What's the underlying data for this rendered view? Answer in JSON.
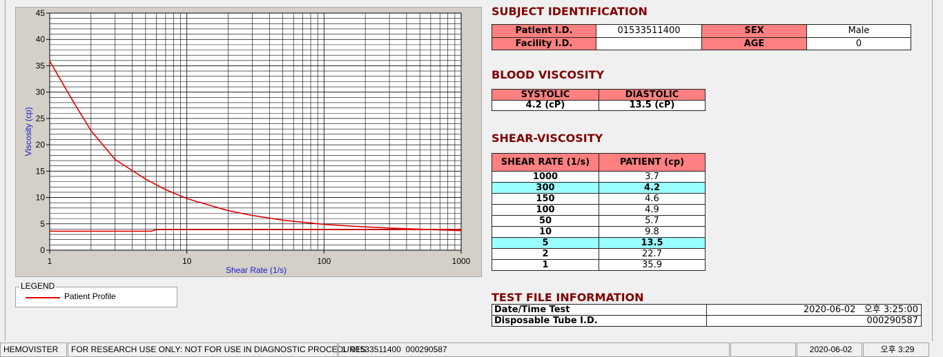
{
  "chart_data": {
    "type": "line",
    "ylabel": "Viscosity (cp)",
    "xlabel": "Shear Rate (1/s)",
    "log_x": true,
    "grid": true,
    "xlim": [
      1,
      1000
    ],
    "xticks": [
      1,
      10,
      100,
      1000
    ],
    "xminorticks": [
      2,
      3,
      4,
      5,
      6,
      7,
      8,
      9,
      20,
      30,
      40,
      50,
      60,
      70,
      80,
      90,
      200,
      300,
      400,
      500,
      600,
      700,
      800,
      900
    ],
    "ylim": [
      0,
      45
    ],
    "yticks": [
      0,
      5,
      10,
      15,
      20,
      25,
      30,
      35,
      40,
      45
    ],
    "yminorticks": [
      1,
      2,
      3,
      4,
      6,
      7,
      8,
      9,
      11,
      12,
      13,
      14,
      16,
      17,
      18,
      19,
      21,
      22,
      23,
      24,
      26,
      27,
      28,
      29,
      31,
      32,
      33,
      34,
      36,
      37,
      38,
      39,
      41,
      42,
      43,
      44
    ],
    "legend_title": "LEGEND",
    "series": [
      {
        "name": "Patient Profile",
        "color": "#e00000",
        "x": [
          1,
          1.5,
          2,
          3,
          5,
          7,
          10,
          20,
          30,
          50,
          100,
          150,
          300,
          1000
        ],
        "values": [
          35.9,
          28,
          22.7,
          17.2,
          13.5,
          11.5,
          9.8,
          7.5,
          6.6,
          5.7,
          4.9,
          4.6,
          4.2,
          3.7
        ]
      },
      {
        "color": "#e00000",
        "x": [
          1,
          5.5,
          6,
          1000
        ],
        "values": [
          3.6,
          3.6,
          3.9,
          3.9
        ]
      }
    ]
  },
  "subject": {
    "title": "SUBJECT IDENTIFICATION",
    "patient_id_label": "Patient I.D.",
    "patient_id": "01533511400",
    "sex_label": "SEX",
    "sex": "Male",
    "facility_id_label": "Facility I.D.",
    "age_label": "AGE",
    "age": 0
  },
  "blood_viscosity": {
    "title": "BLOOD VISCOSITY",
    "systolic_label": "SYSTOLIC",
    "diastolic_label": "DIASTOLIC",
    "systolic": "4.2 (cP)",
    "diastolic": "13.5 (cP)"
  },
  "shear_viscosity": {
    "title": "SHEAR-VISCOSITY",
    "headers": [
      "SHEAR RATE (1/s)",
      "PATIENT (cp)"
    ],
    "rows": [
      {
        "rate": 1000,
        "patient": 3.7
      },
      {
        "rate": 300,
        "patient": 4.2,
        "highlight": true
      },
      {
        "rate": 150,
        "patient": 4.6
      },
      {
        "rate": 100,
        "patient": 4.9
      },
      {
        "rate": 50,
        "patient": 5.7
      },
      {
        "rate": 10,
        "patient": 9.8
      },
      {
        "rate": 5,
        "patient": 13.5,
        "highlight": true
      },
      {
        "rate": 2,
        "patient": 22.7
      },
      {
        "rate": 1,
        "patient": 35.9
      }
    ]
  },
  "test_file": {
    "title": "TEST FILE INFORMATION",
    "rows": [
      [
        "Date/Time Test",
        "2020-06-02   오후 3:25:00"
      ],
      [
        "Disposable Tube I.D.",
        "000290587"
      ]
    ]
  },
  "status_bar": [
    "HEMOVISTER",
    "FOR RESEARCH USE ONLY: NOT FOR USE IN DIAGNOSTIC PROCEDURES",
    "1  01533511400  000290587",
    "2020-06-02",
    "오후 3:29"
  ]
}
